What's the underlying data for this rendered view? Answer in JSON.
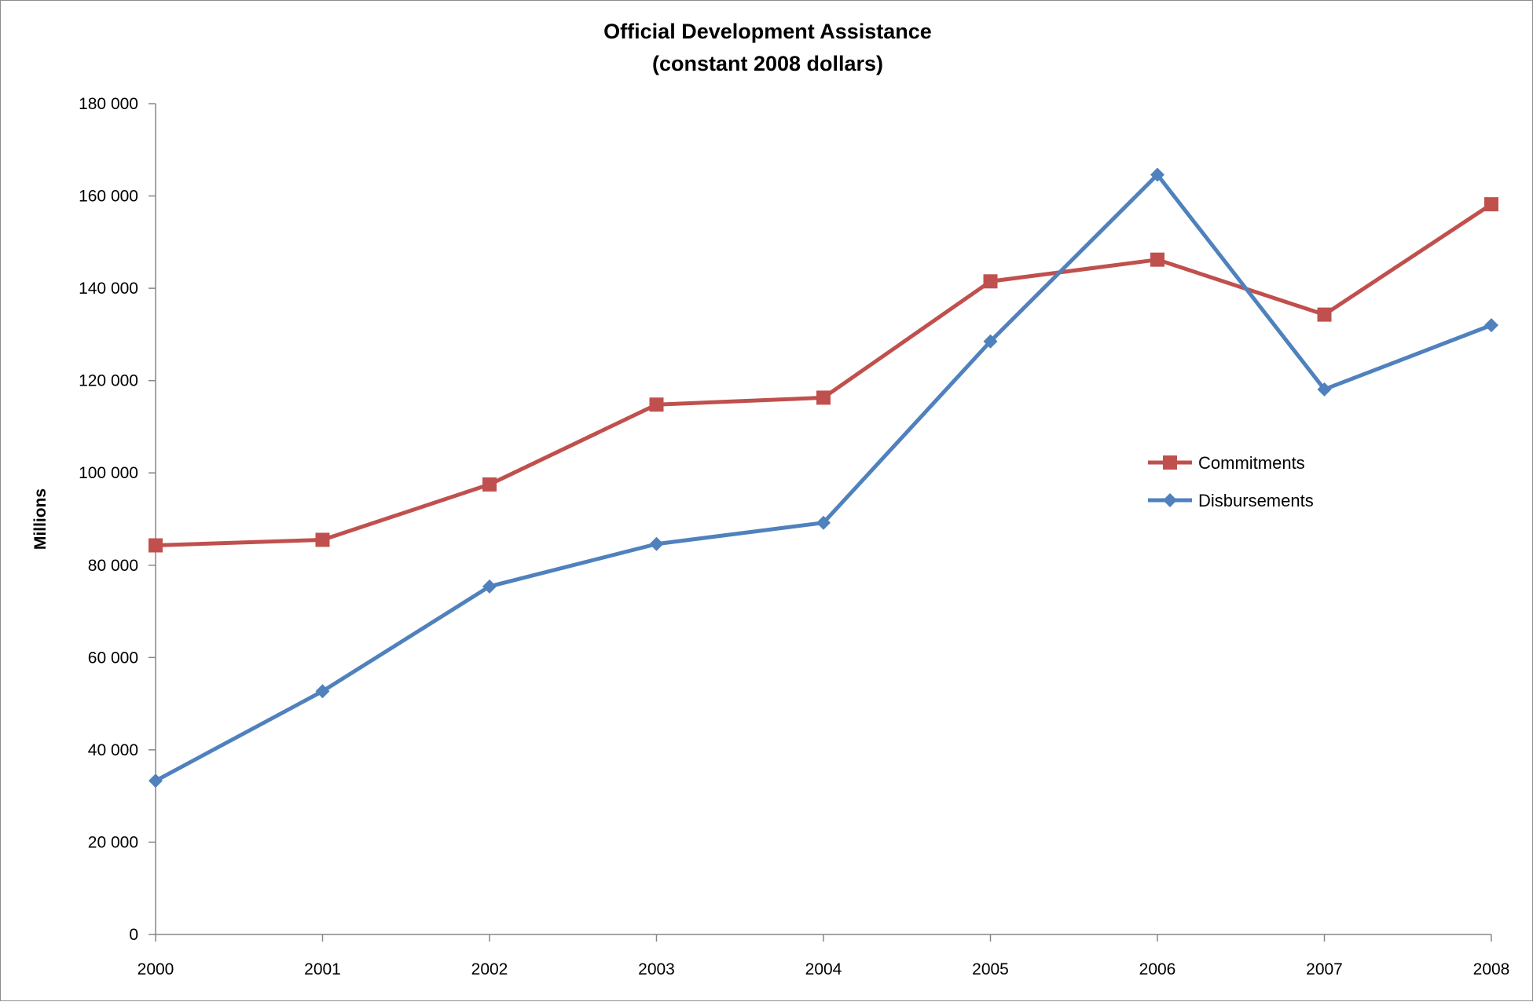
{
  "chart_data": {
    "type": "line",
    "title": "Official Development Assistance",
    "subtitle": "(constant  2008 dollars)",
    "xlabel": "",
    "ylabel": "Millions",
    "x": [
      "2000",
      "2001",
      "2002",
      "2003",
      "2004",
      "2005",
      "2006",
      "2007",
      "2008"
    ],
    "y_ticks": [
      "0",
      "20 000",
      "40 000",
      "60 000",
      "80 000",
      "100 000",
      "120 000",
      "140 000",
      "160 000",
      "180 000"
    ],
    "ylim": [
      0,
      180000
    ],
    "grid": false,
    "legend_position": "right",
    "series": [
      {
        "name": "Commitments",
        "color": "#c0504d",
        "marker": "square",
        "values": [
          84300,
          85500,
          97500,
          114800,
          116300,
          141500,
          146200,
          134300,
          158200
        ]
      },
      {
        "name": "Disbursements",
        "color": "#4f81bd",
        "marker": "diamond",
        "values": [
          33300,
          52700,
          75400,
          84600,
          89200,
          128500,
          164600,
          118100,
          132000
        ]
      }
    ]
  }
}
